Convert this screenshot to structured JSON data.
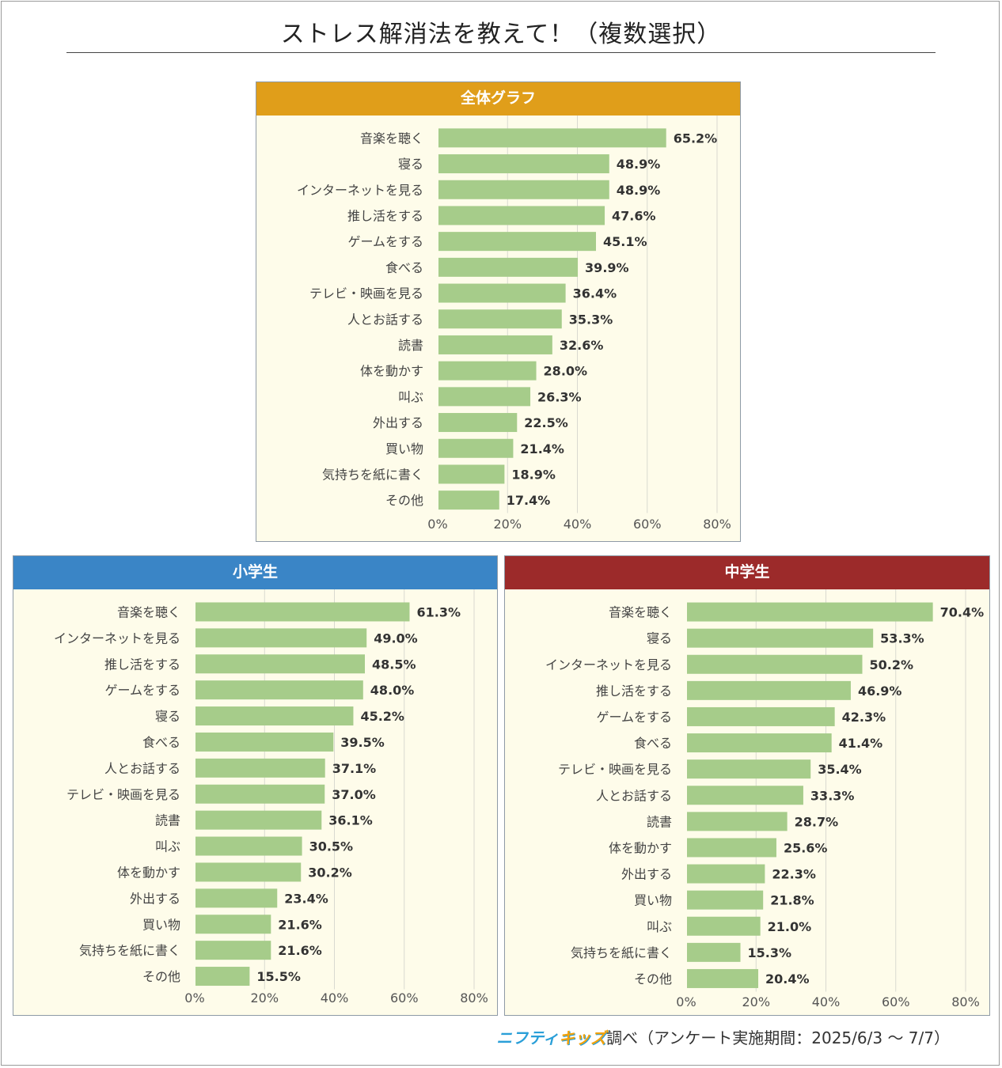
{
  "title": "ストレス解消法を教えて！（複数選択）",
  "footer": {
    "brand_part1": "ニフティ",
    "brand_part2": "キッズ",
    "text": "調べ（アンケート実施期間：2025/6/3 ～ 7/7）"
  },
  "colors": {
    "bar": "#a6cc8a",
    "grid": "#d9d9d0",
    "overall_header": "#e09e1a",
    "elementary_header": "#3a85c6",
    "junior_header": "#9c2a2a"
  },
  "chart_data": [
    {
      "type": "bar",
      "orientation": "horizontal",
      "title": "全体グラフ",
      "xlim": [
        0,
        80
      ],
      "ticks": [
        "0%",
        "20%",
        "40%",
        "60%",
        "80%"
      ],
      "categories": [
        "音楽を聴く",
        "寝る",
        "インターネットを見る",
        "推し活をする",
        "ゲームをする",
        "食べる",
        "テレビ・映画を見る",
        "人とお話する",
        "読書",
        "体を動かす",
        "叫ぶ",
        "外出する",
        "買い物",
        "気持ちを紙に書く",
        "その他"
      ],
      "values": [
        65.2,
        48.9,
        48.9,
        47.6,
        45.1,
        39.9,
        36.4,
        35.3,
        32.6,
        28.0,
        26.3,
        22.5,
        21.4,
        18.9,
        17.4
      ],
      "value_labels": [
        "65.2%",
        "48.9%",
        "48.9%",
        "47.6%",
        "45.1%",
        "39.9%",
        "36.4%",
        "35.3%",
        "32.6%",
        "28.0%",
        "26.3%",
        "22.5%",
        "21.4%",
        "18.9%",
        "17.4%"
      ]
    },
    {
      "type": "bar",
      "orientation": "horizontal",
      "title": "小学生",
      "xlim": [
        0,
        80
      ],
      "ticks": [
        "0%",
        "20%",
        "40%",
        "60%",
        "80%"
      ],
      "categories": [
        "音楽を聴く",
        "インターネットを見る",
        "推し活をする",
        "ゲームをする",
        "寝る",
        "食べる",
        "人とお話する",
        "テレビ・映画を見る",
        "読書",
        "叫ぶ",
        "体を動かす",
        "外出する",
        "買い物",
        "気持ちを紙に書く",
        "その他"
      ],
      "values": [
        61.3,
        49.0,
        48.5,
        48.0,
        45.2,
        39.5,
        37.1,
        37.0,
        36.1,
        30.5,
        30.2,
        23.4,
        21.6,
        21.6,
        15.5
      ],
      "value_labels": [
        "61.3%",
        "49.0%",
        "48.5%",
        "48.0%",
        "45.2%",
        "39.5%",
        "37.1%",
        "37.0%",
        "36.1%",
        "30.5%",
        "30.2%",
        "23.4%",
        "21.6%",
        "21.6%",
        "15.5%"
      ]
    },
    {
      "type": "bar",
      "orientation": "horizontal",
      "title": "中学生",
      "xlim": [
        0,
        80
      ],
      "ticks": [
        "0%",
        "20%",
        "40%",
        "60%",
        "80%"
      ],
      "categories": [
        "音楽を聴く",
        "寝る",
        "インターネットを見る",
        "推し活をする",
        "ゲームをする",
        "食べる",
        "テレビ・映画を見る",
        "人とお話する",
        "読書",
        "体を動かす",
        "外出する",
        "買い物",
        "叫ぶ",
        "気持ちを紙に書く",
        "その他"
      ],
      "values": [
        70.4,
        53.3,
        50.2,
        46.9,
        42.3,
        41.4,
        35.4,
        33.3,
        28.7,
        25.6,
        22.3,
        21.8,
        21.0,
        15.3,
        20.4
      ],
      "value_labels": [
        "70.4%",
        "53.3%",
        "50.2%",
        "46.9%",
        "42.3%",
        "41.4%",
        "35.4%",
        "33.3%",
        "28.7%",
        "25.6%",
        "22.3%",
        "21.8%",
        "21.0%",
        "15.3%",
        "20.4%"
      ]
    }
  ]
}
